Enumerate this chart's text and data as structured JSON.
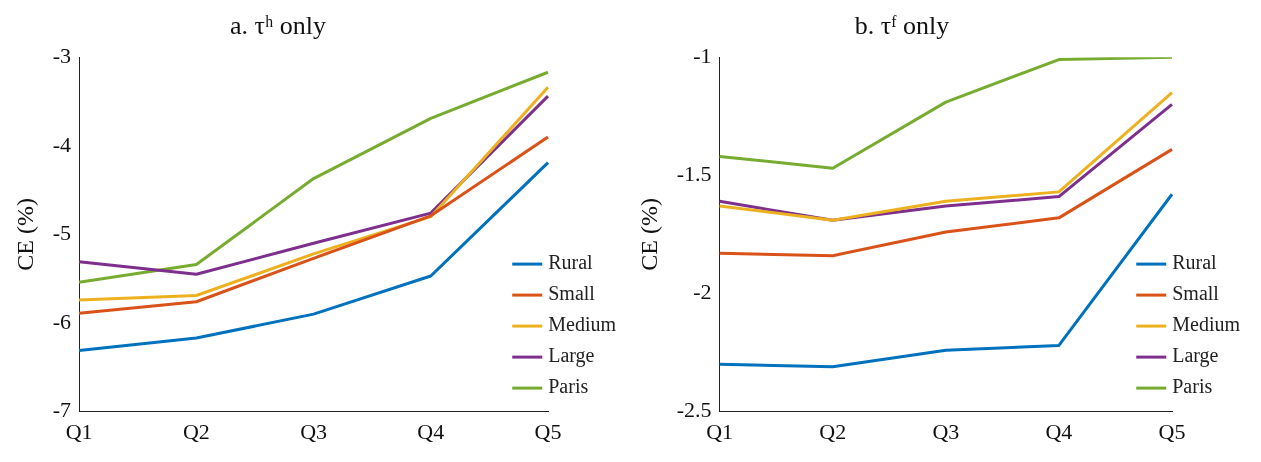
{
  "chart_data": [
    {
      "type": "line",
      "title": "a. τʰ only",
      "ylabel": "CE (%)",
      "categories": [
        "Q1",
        "Q2",
        "Q3",
        "Q4",
        "Q5"
      ],
      "ylim": [
        -7,
        -3
      ],
      "yticks": [
        -7,
        -6,
        -5,
        -4,
        -3
      ],
      "grid": false,
      "legend": "bottom right",
      "marker": "none",
      "line_style": "solid",
      "series": [
        {
          "name": "Rural",
          "color": "#0072bd",
          "values": [
            -6.31,
            -6.17,
            -5.9,
            -5.47,
            -4.19
          ]
        },
        {
          "name": "Small",
          "color": "#d95319",
          "values": [
            -5.89,
            -5.76,
            -5.27,
            -4.79,
            -3.9
          ]
        },
        {
          "name": "Medium",
          "color": "#edb120",
          "values": [
            -5.74,
            -5.69,
            -5.22,
            -4.8,
            -3.34
          ]
        },
        {
          "name": "Large",
          "color": "#7e2f8e",
          "values": [
            -5.31,
            -5.45,
            -5.1,
            -4.76,
            -3.44
          ]
        },
        {
          "name": "Paris",
          "color": "#77ac30",
          "values": [
            -5.54,
            -5.34,
            -4.37,
            -3.69,
            -3.17
          ]
        }
      ]
    },
    {
      "type": "line",
      "title": "b. τᶠ only",
      "ylabel": "CE (%)",
      "categories": [
        "Q1",
        "Q2",
        "Q3",
        "Q4",
        "Q5"
      ],
      "ylim": [
        -2.5,
        -1
      ],
      "yticks": [
        -2.5,
        -2,
        -1.5,
        -1
      ],
      "grid": false,
      "legend": "bottom right",
      "marker": "none",
      "line_style": "solid",
      "series": [
        {
          "name": "Rural",
          "color": "#0072bd",
          "values": [
            -2.3,
            -2.31,
            -2.24,
            -2.22,
            -1.58
          ]
        },
        {
          "name": "Small",
          "color": "#d95319",
          "values": [
            -1.83,
            -1.84,
            -1.74,
            -1.68,
            -1.39
          ]
        },
        {
          "name": "Medium",
          "color": "#edb120",
          "values": [
            -1.63,
            -1.69,
            -1.61,
            -1.57,
            -1.15
          ]
        },
        {
          "name": "Large",
          "color": "#7e2f8e",
          "values": [
            -1.61,
            -1.69,
            -1.63,
            -1.59,
            -1.2
          ]
        },
        {
          "name": "Paris",
          "color": "#77ac30",
          "values": [
            -1.42,
            -1.47,
            -1.19,
            -1.01,
            -1.0
          ]
        }
      ]
    }
  ]
}
